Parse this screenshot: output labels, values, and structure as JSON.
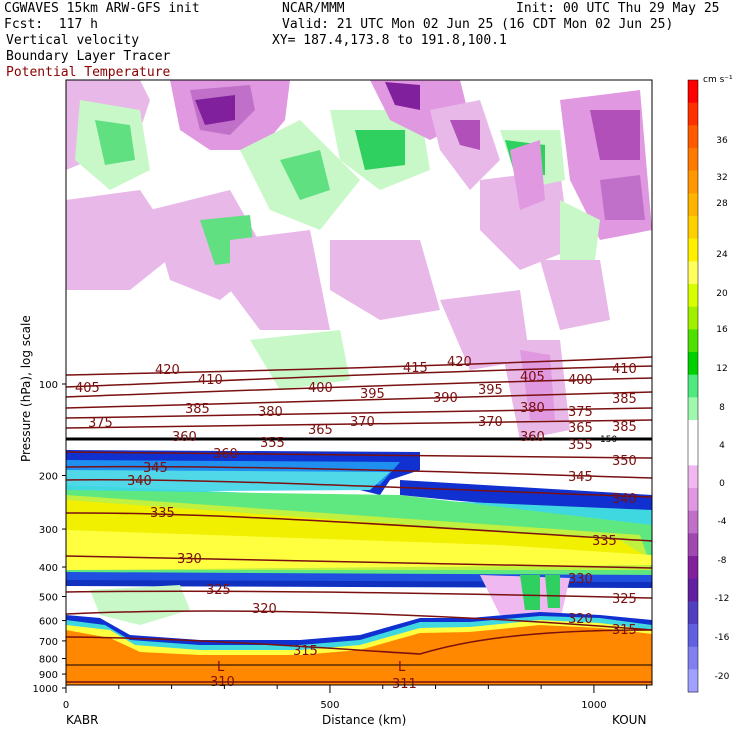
{
  "header": {
    "model": "CGWAVES 15km ARW-GFS init",
    "org": "NCAR/MMM",
    "init": "Init: 00 UTC Thu 29 May 25",
    "fcst": "Fcst:  117 h",
    "valid": "Valid: 21 UTC Mon 02 Jun 25 (16 CDT Mon 02 Jun 25)",
    "field1": "Vertical velocity",
    "xy": "XY= 187.4,173.8 to 191.8,100.1",
    "field2": "Boundary Layer Tracer",
    "field3": "Potential Temperature"
  },
  "colors": {
    "theta_line": "#7a1010",
    "tracer_line": "#000000"
  },
  "chart_data": {
    "type": "heatmap",
    "ylabel": "Pressure (hPa), log scale",
    "xlabel": "Distance (km)",
    "log_y": true,
    "y_ticks": [
      100,
      200,
      300,
      400,
      500,
      600,
      700,
      800,
      900,
      1000
    ],
    "x_ticks": [
      0,
      500,
      1000
    ],
    "xlim": [
      0,
      1110
    ],
    "endpoint_left": "KABR",
    "endpoint_right": "KOUN",
    "colorbar": {
      "unit": "cm s⁻¹",
      "labels": [
        "36",
        "32",
        "28",
        "24",
        "20",
        "16",
        "12",
        "8",
        "4",
        "0",
        "-4",
        "-8",
        "-12",
        "-16",
        "-20"
      ],
      "colors": [
        "#ff0000",
        "#ff3000",
        "#ff5a00",
        "#ff7a00",
        "#ff9800",
        "#ffb400",
        "#ffd000",
        "#fff000",
        "#ffff60",
        "#d8ff00",
        "#a0f000",
        "#50e000",
        "#00d000",
        "#50e880",
        "#a0f8b0",
        "#ffffff",
        "#ffffff",
        "#f0b8f0",
        "#e098e0",
        "#c070c8",
        "#a048b0",
        "#80209c",
        "#6020a0",
        "#5040c0",
        "#6060e0",
        "#8080f0",
        "#a0a0ff"
      ]
    },
    "theta_contours": [
      {
        "label": "420",
        "values": [
          "420",
          "420",
          "410"
        ]
      },
      {
        "label": "415",
        "values": [
          "410",
          "415",
          "405",
          "405",
          "400"
        ]
      },
      {
        "label": "400",
        "values": [
          "400",
          "395",
          "390",
          "395"
        ]
      },
      {
        "label": "385",
        "values": [
          "385",
          "380",
          "385",
          "380",
          "375",
          "385"
        ]
      },
      {
        "label": "370",
        "values": [
          "375",
          "370",
          "370",
          "365",
          "365"
        ]
      },
      {
        "label": "360",
        "values": [
          "360",
          "360",
          "355",
          "355",
          "360"
        ]
      },
      {
        "label": "350",
        "values": [
          "350",
          "345",
          "345",
          "350"
        ]
      },
      {
        "label": "340",
        "values": [
          "340",
          "340"
        ]
      },
      {
        "label": "335",
        "values": [
          "335",
          "335"
        ]
      },
      {
        "label": "330",
        "values": [
          "330",
          "330"
        ]
      },
      {
        "label": "325",
        "values": [
          "325",
          "325"
        ]
      },
      {
        "label": "320",
        "values": [
          "320",
          "320"
        ]
      },
      {
        "label": "315",
        "values": [
          "315",
          "315"
        ]
      },
      {
        "label": "310",
        "values": [
          "310",
          "311"
        ]
      }
    ],
    "annotations": [
      "L",
      "L",
      "150"
    ]
  }
}
